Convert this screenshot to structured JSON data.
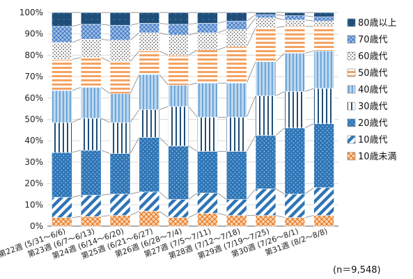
{
  "chart_data": {
    "type": "bar",
    "stacked": true,
    "normalized": true,
    "categories": [
      "第22週 (5/31～6/6)",
      "第23週 (6/7～6/13)",
      "第24週 (6/14～6/20)",
      "第25週 (6/21～6/27)",
      "第26週 (6/28～7/4)",
      "第27週 (7/5～7/11)",
      "第28週 (7/12～7/18)",
      "第29週 (7/19～7/25)",
      "第30週 (7/26～8/1)",
      "第31週 (8/2～8/8)"
    ],
    "series": [
      {
        "name": "10歳未満",
        "values": [
          4.0,
          4.5,
          5.0,
          7.0,
          4.0,
          6.0,
          5.0,
          5.0,
          4.0,
          5.0
        ],
        "color": "#F4A261"
      },
      {
        "name": "10歳代",
        "values": [
          9.5,
          10.0,
          10.0,
          9.0,
          8.5,
          9.5,
          7.5,
          12.5,
          11.0,
          13.0
        ],
        "color": "#2E75B6"
      },
      {
        "name": "20歳代",
        "values": [
          21.0,
          21.0,
          19.0,
          25.5,
          25.0,
          19.5,
          22.5,
          25.0,
          31.0,
          30.0
        ],
        "color": "#2E75B6"
      },
      {
        "name": "30歳代",
        "values": [
          14.0,
          15.0,
          14.5,
          13.0,
          18.5,
          16.0,
          16.0,
          18.5,
          17.0,
          16.5
        ],
        "color": "#1F4E79"
      },
      {
        "name": "40歳代",
        "values": [
          15.0,
          14.5,
          13.5,
          16.5,
          10.0,
          16.0,
          16.0,
          16.0,
          18.0,
          17.5
        ],
        "color": "#5B9BD5"
      },
      {
        "name": "50歳代",
        "values": [
          14.5,
          14.0,
          15.0,
          11.0,
          14.0,
          15.5,
          17.0,
          16.0,
          12.5,
          11.5
        ],
        "color": "#F4A261"
      },
      {
        "name": "60歳代",
        "values": [
          8.0,
          8.5,
          10.0,
          8.5,
          9.5,
          8.0,
          8.0,
          4.5,
          3.0,
          2.5
        ],
        "color": "#595959"
      },
      {
        "name": "70歳代",
        "values": [
          7.5,
          7.0,
          7.0,
          4.5,
          5.0,
          4.5,
          4.0,
          1.5,
          2.0,
          2.0
        ],
        "color": "#5B9BD5"
      },
      {
        "name": "80歳以上",
        "values": [
          6.5,
          5.5,
          6.0,
          5.0,
          5.5,
          5.0,
          4.0,
          1.0,
          1.5,
          2.0
        ],
        "color": "#1F4E79"
      }
    ],
    "yticks": [
      "0%",
      "10%",
      "20%",
      "30%",
      "40%",
      "50%",
      "60%",
      "70%",
      "80%",
      "90%",
      "100%"
    ],
    "ylim": [
      0,
      100
    ],
    "legend_position": "right",
    "annotation": "(n＝9,548)"
  }
}
